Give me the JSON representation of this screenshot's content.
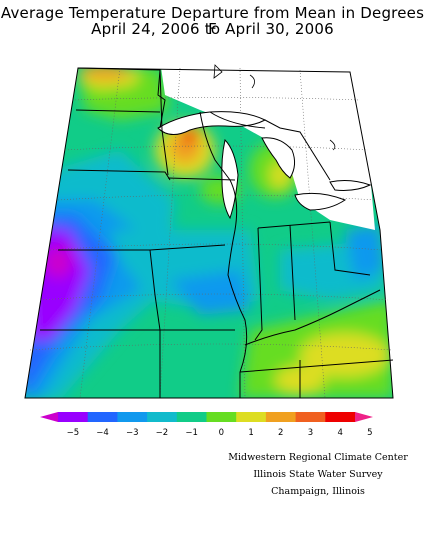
{
  "title": "Average Temperature Departure from Mean in Degrees F",
  "subtitle": "April 24, 2006 to April 30, 2006",
  "legend": {
    "ticks": [
      "−5",
      "−4",
      "−3",
      "−2",
      "−1",
      "0",
      "1",
      "2",
      "3",
      "4",
      "5"
    ],
    "colors": [
      "#cc00cc",
      "#9900ff",
      "#2266ff",
      "#1199ee",
      "#11bbcc",
      "#11cc88",
      "#66dd22",
      "#dddd22",
      "#f0a020",
      "#f06020",
      "#ee0000",
      "#ee2288"
    ]
  },
  "credits": [
    "Midwestern Regional Climate Center",
    "Illinois State Water Survey",
    "Champaign, Illinois"
  ]
}
